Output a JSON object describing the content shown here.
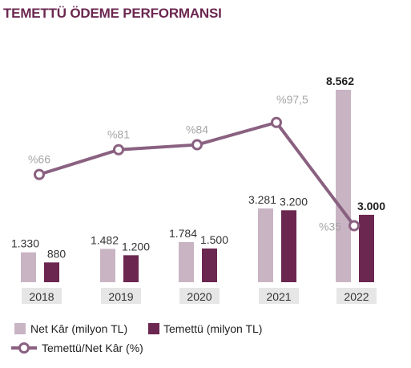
{
  "chart_data": {
    "type": "bar",
    "title": "TEMETTÜ ÖDEME PERFORMANSI",
    "categories": [
      "2018",
      "2019",
      "2020",
      "2021",
      "2022"
    ],
    "series": [
      {
        "name": "Net Kâr (milyon TL)",
        "kind": "bar",
        "color": "#c9b4c3",
        "values": [
          1330,
          1482,
          1784,
          3281,
          8562
        ],
        "labels": [
          "1.330",
          "1.482",
          "1.784",
          "3.281",
          "8.562"
        ]
      },
      {
        "name": "Temettü (milyon TL)",
        "kind": "bar",
        "color": "#6b2750",
        "values": [
          880,
          1200,
          1500,
          3200,
          3000
        ],
        "labels": [
          "880",
          "1.200",
          "1.500",
          "3.200",
          "3.000"
        ]
      },
      {
        "name": "Temettü/Net Kâr (%)",
        "kind": "line",
        "color": "#8a6180",
        "values": [
          66,
          81,
          84,
          97.5,
          35
        ],
        "labels": [
          "%66",
          "%81",
          "%84",
          "%97,5",
          "%35"
        ]
      }
    ],
    "bold_labels_category": "2022",
    "legend_position": "bottom-left",
    "grid": false
  },
  "colors": {
    "title": "#6b2750",
    "value_text": "#333333",
    "pct_text": "#a5a5a5",
    "tick_box": "#e6e6e6"
  }
}
